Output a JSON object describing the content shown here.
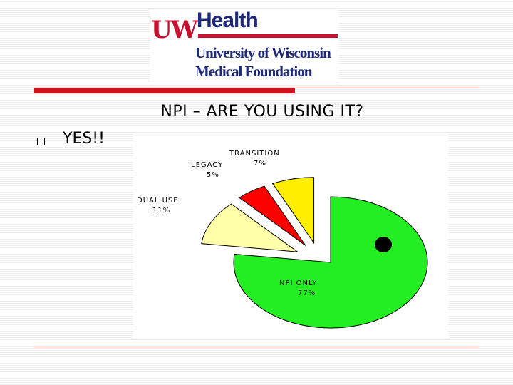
{
  "logo": {
    "uw": "UW",
    "health": "Health",
    "line1": "University of Wisconsin",
    "line2": "Medical Foundation"
  },
  "slide": {
    "title": "NPI – ARE YOU USING IT?",
    "bullet": "YES!!"
  },
  "colors": {
    "accent_red": "#d4121f",
    "brand_navy": "#1e2a78"
  },
  "chart_data": {
    "type": "pie",
    "exploded": true,
    "slices": [
      {
        "label": "NPI ONLY",
        "pct_label": "77%",
        "value": 77,
        "color": "#22ee22"
      },
      {
        "label": "DUAL USE",
        "pct_label": "11%",
        "value": 11,
        "color": "#ffffaa"
      },
      {
        "label": "LEGACY",
        "pct_label": "5%",
        "value": 5,
        "color": "#ff0000"
      },
      {
        "label": "TRANSITION",
        "pct_label": "7%",
        "value": 7,
        "color": "#ffee00"
      }
    ],
    "marker": "black-dot"
  }
}
